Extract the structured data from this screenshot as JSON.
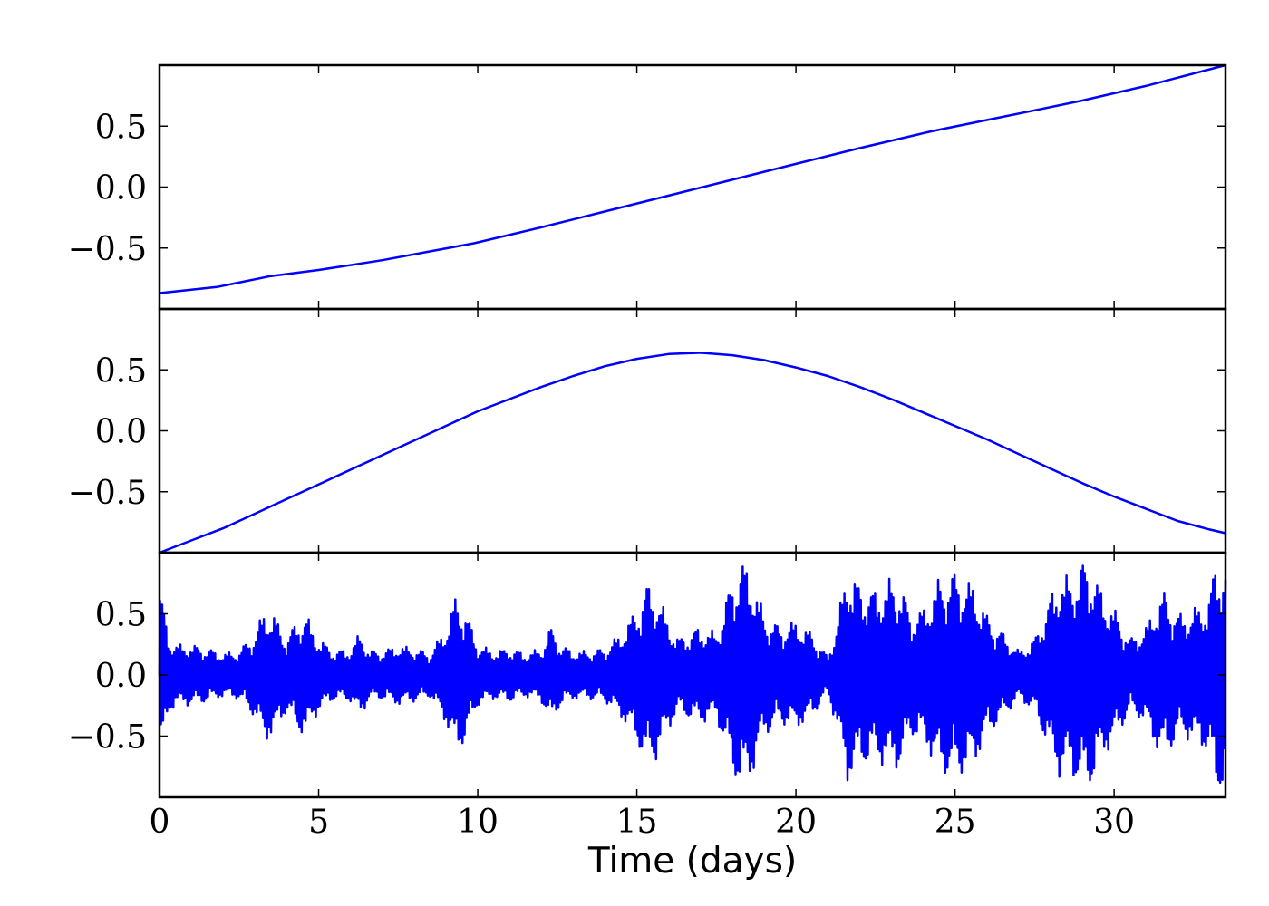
{
  "chart_data": {
    "type": "line",
    "layout": "3 stacked panels sharing x axis",
    "xlabel": "Time (days)",
    "xlim": [
      0,
      33.5
    ],
    "xticks": [
      0,
      5,
      10,
      15,
      20,
      25,
      30
    ],
    "xtick_labels": [
      "0",
      "5",
      "10",
      "15",
      "20",
      "25",
      "30"
    ],
    "ytick_labels": [
      "0.5",
      "0.0",
      "−0.5"
    ],
    "line_color": "#0000ff",
    "grid": false,
    "panels": [
      {
        "ylim": [
          -1.0,
          1.0
        ],
        "yticks": [
          0.5,
          0.0,
          -0.5
        ],
        "series": [
          {
            "x": [
              0,
              1.8,
              3.5,
              5,
              7,
              9.9,
              12,
              14,
              16,
              18,
              20,
              22,
              24.3,
              26,
              27.5,
              29,
              31,
              33.5
            ],
            "y": [
              -0.87,
              -0.82,
              -0.73,
              -0.68,
              -0.6,
              -0.46,
              -0.33,
              -0.2,
              -0.07,
              0.06,
              0.19,
              0.32,
              0.46,
              0.55,
              0.63,
              0.71,
              0.83,
              1.0
            ]
          }
        ]
      },
      {
        "ylim": [
          -1.0,
          1.0
        ],
        "yticks": [
          0.5,
          0.0,
          -0.5
        ],
        "series": [
          {
            "x": [
              0,
              1,
              2,
              3,
              4,
              5,
              6,
              7,
              8,
              9,
              10,
              11,
              12,
              13,
              14,
              15,
              16,
              17,
              18,
              19,
              20,
              21,
              22,
              23,
              24,
              25,
              26,
              27,
              28,
              29,
              30,
              31,
              32,
              33,
              33.5
            ],
            "y": [
              -1.0,
              -0.9,
              -0.8,
              -0.68,
              -0.56,
              -0.44,
              -0.32,
              -0.2,
              -0.08,
              0.04,
              0.16,
              0.26,
              0.36,
              0.45,
              0.53,
              0.59,
              0.63,
              0.64,
              0.62,
              0.58,
              0.52,
              0.45,
              0.36,
              0.26,
              0.15,
              0.04,
              -0.07,
              -0.19,
              -0.31,
              -0.43,
              -0.54,
              -0.64,
              -0.74,
              -0.81,
              -0.84
            ]
          }
        ]
      },
      {
        "ylim": [
          -1.0,
          1.0
        ],
        "yticks": [
          0.5,
          0.0,
          -0.5
        ],
        "series": [
          {
            "x": [
              0,
              0.3,
              0.6,
              1,
              1.5,
              2,
              2.5,
              3,
              3.3,
              3.6,
              4,
              4.3,
              4.6,
              5,
              5.5,
              6,
              6.3,
              6.6,
              7,
              7.5,
              8,
              8.5,
              9,
              9.3,
              9.6,
              10,
              10.5,
              11,
              11.5,
              12,
              12.3,
              12.6,
              13,
              13.5,
              14,
              14.5,
              15,
              15.3,
              15.6,
              16,
              16.3,
              16.6,
              17,
              17.5,
              18,
              18.3,
              18.6,
              19,
              19.5,
              20,
              20.5,
              21,
              21.3,
              21.6,
              22,
              22.5,
              23,
              23.3,
              23.6,
              24,
              24.5,
              25,
              25.3,
              25.6,
              26,
              26.5,
              27,
              27.5,
              28,
              28.3,
              28.6,
              29,
              29.3,
              29.6,
              30,
              30.5,
              31,
              31.3,
              31.6,
              32,
              32.5,
              33,
              33.2,
              33.5
            ],
            "envelope": [
              0.75,
              0.3,
              0.25,
              0.25,
              0.22,
              0.18,
              0.2,
              0.35,
              0.55,
              0.5,
              0.3,
              0.45,
              0.5,
              0.3,
              0.2,
              0.22,
              0.35,
              0.2,
              0.2,
              0.25,
              0.22,
              0.18,
              0.4,
              0.65,
              0.55,
              0.25,
              0.2,
              0.22,
              0.18,
              0.22,
              0.4,
              0.25,
              0.2,
              0.2,
              0.22,
              0.35,
              0.55,
              0.75,
              0.7,
              0.45,
              0.3,
              0.35,
              0.4,
              0.35,
              0.8,
              0.95,
              0.85,
              0.5,
              0.4,
              0.45,
              0.35,
              0.15,
              0.45,
              0.9,
              0.75,
              0.7,
              0.8,
              0.75,
              0.5,
              0.55,
              0.8,
              0.85,
              0.8,
              0.75,
              0.5,
              0.35,
              0.2,
              0.3,
              0.65,
              0.85,
              0.8,
              0.95,
              0.9,
              0.7,
              0.55,
              0.3,
              0.4,
              0.6,
              0.7,
              0.5,
              0.55,
              0.65,
              0.98,
              0.9
            ]
          }
        ]
      }
    ]
  }
}
